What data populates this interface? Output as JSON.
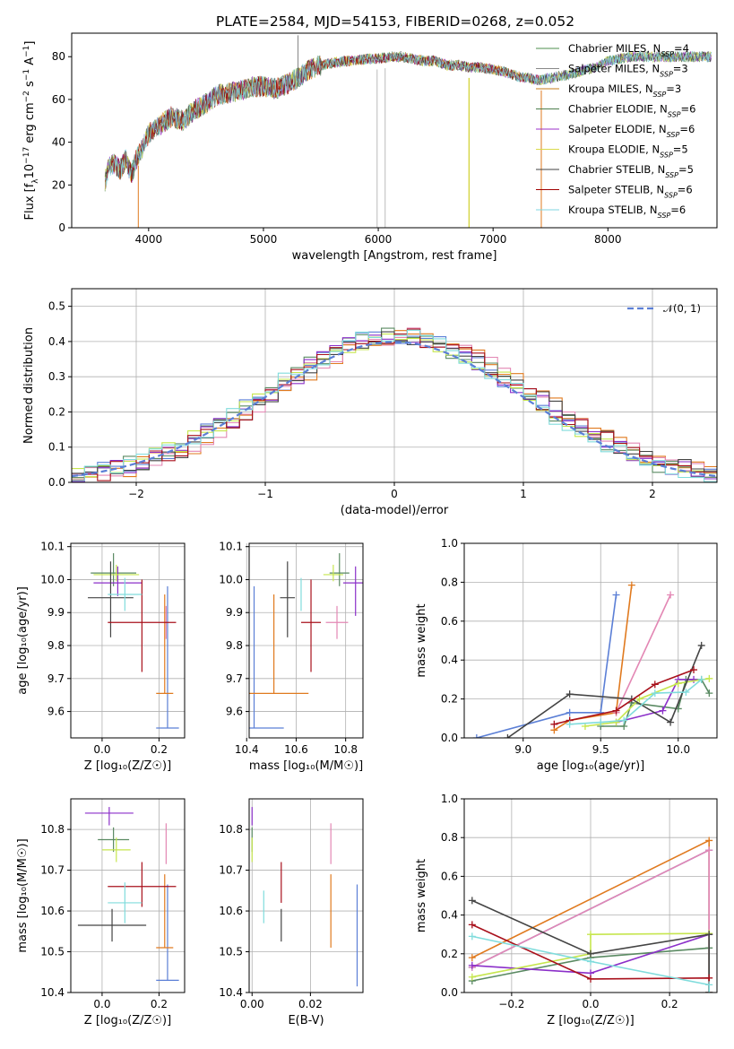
{
  "page_title": "PLATE=2584, MJD=54153, FIBERID=0268, z=0.052",
  "colors": {
    "Chabrier MILES": "#4e8f4e",
    "Salpeter MILES": "#7f7f7f",
    "Kroupa MILES": "#c77c1a",
    "Chabrier ELODIE": "#4e7f4e",
    "Salpeter ELODIE": "#9b30c8",
    "Kroupa ELODIE": "#d9d94a",
    "Chabrier STELIB": "#404040",
    "Salpeter STELIB": "#a00000",
    "Kroupa STELIB": "#7fd6e0",
    "blue": "#5b7fd6",
    "orange": "#e07a1f",
    "pink": "#e387b4",
    "green": "#5a8a62",
    "purple": "#8b2fc9",
    "lime": "#c6e64e",
    "dark": "#444444",
    "red": "#a8101b",
    "cyan": "#80dcdc"
  },
  "chart_data": [
    {
      "type": "line",
      "title": "PLATE=2584, MJD=54153, FIBERID=0268, z=0.052",
      "xlabel": "wavelength [Angstrom, rest frame]",
      "ylabel": "Flux [f$_\\lambda$10$^{-17}$ erg cm$^{-2}$ s$^{-1}$ A$^{-1}$]",
      "ylabel_display": [
        "Flux [f",
        "λ",
        "10",
        "−17",
        " erg cm",
        "−2",
        " s",
        "−1",
        " A",
        "−1",
        "]"
      ],
      "xlim": [
        3330,
        8950
      ],
      "ylim": [
        0,
        91
      ],
      "xticks": [
        4000,
        5000,
        6000,
        7000,
        8000
      ],
      "yticks": [
        0,
        20,
        40,
        60,
        80
      ],
      "legend": "top-right",
      "legend_entries": [
        {
          "name": "Chabrier MILES",
          "nssp": "4",
          "color": "#4e8f4e"
        },
        {
          "name": "Salpeter MILES",
          "nssp": "3",
          "color": "#888888"
        },
        {
          "name": "Kroupa MILES",
          "nssp": "3",
          "color": "#c77c1a"
        },
        {
          "name": "Chabrier ELODIE",
          "nssp": "6",
          "color": "#4e7f4e"
        },
        {
          "name": "Salpeter ELODIE",
          "nssp": "6",
          "color": "#9b30c8"
        },
        {
          "name": "Kroupa ELODIE",
          "nssp": "5",
          "color": "#d9d94a"
        },
        {
          "name": "Chabrier STELIB",
          "nssp": "5",
          "color": "#404040"
        },
        {
          "name": "Salpeter STELIB",
          "nssp": "6",
          "color": "#a00000"
        },
        {
          "name": "Kroupa STELIB",
          "nssp": "6",
          "color": "#7fd6e0"
        }
      ],
      "legend_label_prefix": ", N",
      "legend_label_sub": "SSP",
      "legend_label_eq": "=",
      "spectrum_envelope": {
        "x": [
          3620,
          3650,
          3700,
          3750,
          3800,
          3850,
          3900,
          3950,
          4000,
          4100,
          4200,
          4300,
          4400,
          4500,
          4600,
          4700,
          4800,
          4900,
          5000,
          5100,
          5200,
          5300,
          5400,
          5500,
          5600,
          5700,
          5800,
          5900,
          6000,
          6100,
          6200,
          6300,
          6400,
          6500,
          6600,
          6700,
          6800,
          6900,
          7000,
          7100,
          7200,
          7300,
          7400,
          7500,
          7600,
          7700,
          7800,
          7900,
          8000,
          8100,
          8200,
          8300,
          8400,
          8500,
          8600,
          8700,
          8800,
          8900
        ],
        "y": [
          22,
          28,
          30,
          27,
          32,
          25,
          33,
          38,
          44,
          48,
          52,
          50,
          55,
          58,
          62,
          63,
          64,
          66,
          66,
          65,
          67,
          70,
          74,
          76,
          77,
          78,
          78,
          79,
          79,
          80,
          80,
          79,
          78,
          78,
          76,
          76,
          75,
          75,
          74,
          73,
          71,
          70,
          69,
          70,
          71,
          72,
          74,
          75,
          78,
          79,
          80,
          80,
          80,
          80,
          80,
          80,
          80,
          80
        ]
      }
    },
    {
      "type": "line",
      "xlabel": "(data-model)/error",
      "ylabel": "Normed distribution",
      "xlim": [
        -2.5,
        2.5
      ],
      "ylim": [
        0,
        0.55
      ],
      "xticks": [
        -2,
        -1,
        0,
        1,
        2
      ],
      "xtick_labels": [
        "−2",
        "−1",
        "0",
        "1",
        "2"
      ],
      "yticks": [
        0.0,
        0.1,
        0.2,
        0.3,
        0.4,
        0.5
      ],
      "ytick_labels": [
        "0.0",
        "0.1",
        "0.2",
        "0.3",
        "0.4",
        "0.5"
      ],
      "legend": "top-right",
      "legend_entries": [
        {
          "name": "𝒩(0, 1)",
          "color": "#5b7fd6",
          "style": "dashed"
        }
      ],
      "bin_width": 0.1
    },
    {
      "type": "scatter",
      "xlabel": "Z [log₁₀(Z/Z☉)]",
      "ylabel": "age  [log₁₀(age/yr)]",
      "xlim": [
        -0.11,
        0.29
      ],
      "ylim": [
        9.52,
        10.11
      ],
      "xticks": [
        0.0,
        0.2
      ],
      "xtick_labels": [
        "0.0",
        "0.2"
      ],
      "yticks": [
        9.6,
        9.7,
        9.8,
        9.9,
        10.0,
        10.1
      ],
      "ytick_labels": [
        "9.6",
        "9.7",
        "9.8",
        "9.9",
        "10.0",
        "10.1"
      ],
      "series": [
        {
          "color": "#5b7fd6",
          "x": 0.23,
          "xerr": 0.04,
          "y": 9.55,
          "yerr": [
            0.0,
            0.43
          ]
        },
        {
          "color": "#e07a1f",
          "x": 0.22,
          "xerr": 0.03,
          "y": 9.655,
          "yerr": [
            0.0,
            0.3
          ]
        },
        {
          "color": "#e387b4",
          "x": 0.225,
          "xerr": 0.0,
          "y": 9.87,
          "yerr": [
            0.05,
            0.05
          ]
        },
        {
          "color": "#5a8a62",
          "x": 0.04,
          "xerr": 0.08,
          "y": 10.02,
          "yerr": [
            0.04,
            0.06
          ]
        },
        {
          "color": "#8b2fc9",
          "x": 0.055,
          "xerr": 0.085,
          "y": 9.99,
          "yerr": [
            0.04,
            0.05
          ]
        },
        {
          "color": "#c6e64e",
          "x": 0.05,
          "xerr": 0.08,
          "y": 10.015,
          "yerr": [
            0.02,
            0.03
          ]
        },
        {
          "color": "#444444",
          "x": 0.03,
          "xerr": 0.08,
          "y": 9.945,
          "yerr": [
            0.12,
            0.11
          ]
        },
        {
          "color": "#a8101b",
          "x": 0.14,
          "xerr": 0.12,
          "y": 9.87,
          "yerr": [
            0.15,
            0.13
          ]
        },
        {
          "color": "#80dcdc",
          "x": 0.08,
          "xerr": 0.06,
          "y": 9.955,
          "yerr": [
            0.05,
            0.05
          ]
        }
      ]
    },
    {
      "type": "scatter",
      "xlabel": "mass [log₁₀(M/M☉)]",
      "ylabel": "",
      "xlim": [
        10.41,
        10.87
      ],
      "ylim": [
        9.52,
        10.11
      ],
      "xticks": [
        10.4,
        10.6,
        10.8
      ],
      "xtick_labels": [
        "10.4",
        "10.6",
        "10.8"
      ],
      "yticks": [
        9.6,
        9.7,
        9.8,
        9.9,
        10.0,
        10.1
      ],
      "ytick_labels": [
        "9.6",
        "9.7",
        "9.8",
        "9.9",
        "10.0",
        "10.1"
      ],
      "series": [
        {
          "color": "#5b7fd6",
          "x": 10.43,
          "xerr": 0.12,
          "y": 9.55,
          "yerr": [
            0.0,
            0.43
          ]
        },
        {
          "color": "#e07a1f",
          "x": 10.51,
          "xerr": 0.14,
          "y": 9.655,
          "yerr": [
            0.0,
            0.3
          ]
        },
        {
          "color": "#e387b4",
          "x": 10.765,
          "xerr": 0.045,
          "y": 9.87,
          "yerr": [
            0.05,
            0.05
          ]
        },
        {
          "color": "#5a8a62",
          "x": 10.775,
          "xerr": 0.04,
          "y": 10.02,
          "yerr": [
            0.04,
            0.06
          ]
        },
        {
          "color": "#8b2fc9",
          "x": 10.84,
          "xerr": 0.05,
          "y": 9.99,
          "yerr": [
            0.1,
            0.05
          ]
        },
        {
          "color": "#c6e64e",
          "x": 10.75,
          "xerr": 0.04,
          "y": 10.015,
          "yerr": [
            0.02,
            0.03
          ]
        },
        {
          "color": "#444444",
          "x": 10.565,
          "xerr": 0.03,
          "y": 9.945,
          "yerr": [
            0.12,
            0.11
          ]
        },
        {
          "color": "#a8101b",
          "x": 10.66,
          "xerr": 0.04,
          "y": 9.87,
          "yerr": [
            0.15,
            0.13
          ]
        },
        {
          "color": "#80dcdc",
          "x": 10.62,
          "xerr": 0.0,
          "y": 9.955,
          "yerr": [
            0.05,
            0.05
          ]
        }
      ]
    },
    {
      "type": "line",
      "xlabel": "age  [log₁₀(age/yr)]",
      "ylabel": "mass weight",
      "xlim": [
        8.62,
        10.25
      ],
      "ylim": [
        0,
        1.0
      ],
      "xticks": [
        9.0,
        9.5,
        10.0
      ],
      "xtick_labels": [
        "9.0",
        "9.5",
        "10.0"
      ],
      "yticks": [
        0.0,
        0.2,
        0.4,
        0.6,
        0.8,
        1.0
      ],
      "ytick_labels": [
        "0.0",
        "0.2",
        "0.4",
        "0.6",
        "0.8",
        "1.0"
      ],
      "series": [
        {
          "color": "#5b7fd6",
          "x": [
            8.7,
            9.3,
            9.5,
            9.6
          ],
          "y": [
            0.0,
            0.13,
            0.13,
            0.735
          ]
        },
        {
          "color": "#e07a1f",
          "x": [
            9.2,
            9.3,
            9.6,
            9.7
          ],
          "y": [
            0.04,
            0.09,
            0.13,
            0.785
          ]
        },
        {
          "color": "#e387b4",
          "x": [
            9.6,
            9.95
          ],
          "y": [
            0.13,
            0.735
          ]
        },
        {
          "color": "#5a8a62",
          "x": [
            9.5,
            9.65,
            9.7,
            10.0,
            10.05,
            10.15,
            10.2
          ],
          "y": [
            0.06,
            0.06,
            0.18,
            0.15,
            0.3,
            0.3,
            0.23
          ]
        },
        {
          "color": "#8b2fc9",
          "x": [
            9.6,
            9.9,
            10.0,
            10.1
          ],
          "y": [
            0.08,
            0.14,
            0.3,
            0.3
          ]
        },
        {
          "color": "#c6e64e",
          "x": [
            9.4,
            9.6,
            9.75,
            10.0,
            10.2
          ],
          "y": [
            0.06,
            0.08,
            0.2,
            0.28,
            0.305
          ]
        },
        {
          "color": "#444444",
          "x": [
            8.9,
            9.3,
            9.7,
            9.95,
            10.15
          ],
          "y": [
            0.0,
            0.225,
            0.2,
            0.08,
            0.475
          ]
        },
        {
          "color": "#a8101b",
          "x": [
            9.2,
            9.3,
            9.6,
            9.85,
            10.1
          ],
          "y": [
            0.07,
            0.09,
            0.14,
            0.275,
            0.35
          ]
        },
        {
          "color": "#80dcdc",
          "x": [
            9.3,
            9.5,
            9.65,
            9.85,
            10.05,
            10.15
          ],
          "y": [
            0.07,
            0.08,
            0.09,
            0.23,
            0.235,
            0.3
          ]
        }
      ]
    },
    {
      "type": "scatter",
      "xlabel": "Z [log₁₀(Z/Z☉)]",
      "ylabel": "mass [log₁₀(M/M☉)]",
      "xlim": [
        -0.11,
        0.29
      ],
      "ylim": [
        10.4,
        10.875
      ],
      "xticks": [
        0.0,
        0.2
      ],
      "xtick_labels": [
        "0.0",
        "0.2"
      ],
      "yticks": [
        10.4,
        10.5,
        10.6,
        10.7,
        10.8
      ],
      "ytick_labels": [
        "10.4",
        "10.5",
        "10.6",
        "10.7",
        "10.8"
      ],
      "series": [
        {
          "color": "#5b7fd6",
          "x": 0.23,
          "xerr": 0.04,
          "y": 10.43,
          "yerr": [
            0.0,
            0.235
          ]
        },
        {
          "color": "#e07a1f",
          "x": 0.22,
          "xerr": 0.03,
          "y": 10.51,
          "yerr": [
            0.0,
            0.18
          ]
        },
        {
          "color": "#e387b4",
          "x": 0.225,
          "xerr": 0.0,
          "y": 10.765,
          "yerr": [
            0.05,
            0.05
          ]
        },
        {
          "color": "#5a8a62",
          "x": 0.04,
          "xerr": 0.055,
          "y": 10.775,
          "yerr": [
            0.03,
            0.03
          ]
        },
        {
          "color": "#8b2fc9",
          "x": 0.025,
          "xerr": 0.085,
          "y": 10.84,
          "yerr": [
            0.03,
            0.015
          ]
        },
        {
          "color": "#c6e64e",
          "x": 0.05,
          "xerr": 0.05,
          "y": 10.75,
          "yerr": [
            0.03,
            0.03
          ]
        },
        {
          "color": "#444444",
          "x": 0.035,
          "xerr": 0.12,
          "y": 10.565,
          "yerr": [
            0.04,
            0.04
          ]
        },
        {
          "color": "#a8101b",
          "x": 0.14,
          "xerr": 0.12,
          "y": 10.66,
          "yerr": [
            0.05,
            0.06
          ]
        },
        {
          "color": "#80dcdc",
          "x": 0.08,
          "xerr": 0.06,
          "y": 10.62,
          "yerr": [
            0.05,
            0.05
          ]
        }
      ]
    },
    {
      "type": "scatter",
      "xlabel": "E(B-V)",
      "ylabel": "",
      "xlim": [
        -0.001,
        0.038
      ],
      "ylim": [
        10.4,
        10.875
      ],
      "xticks": [
        0.0,
        0.02
      ],
      "xtick_labels": [
        "0.00",
        "0.02"
      ],
      "yticks": [
        10.4,
        10.5,
        10.6,
        10.7,
        10.8
      ],
      "ytick_labels": [
        "10.4",
        "10.5",
        "10.6",
        "10.7",
        "10.8"
      ],
      "series": [
        {
          "color": "#5b7fd6",
          "x": 0.036,
          "y": 10.43,
          "yerr": [
            0.015,
            0.235
          ]
        },
        {
          "color": "#e07a1f",
          "x": 0.027,
          "y": 10.51,
          "yerr": [
            0.0,
            0.18
          ]
        },
        {
          "color": "#e387b4",
          "x": 0.027,
          "y": 10.765,
          "yerr": [
            0.05,
            0.05
          ]
        },
        {
          "color": "#5a8a62",
          "x": 0.0,
          "y": 10.775,
          "yerr": [
            0.03,
            0.03
          ]
        },
        {
          "color": "#8b2fc9",
          "x": 0.0,
          "y": 10.84,
          "yerr": [
            0.03,
            0.015
          ]
        },
        {
          "color": "#c6e64e",
          "x": 0.0,
          "y": 10.75,
          "yerr": [
            0.03,
            0.03
          ]
        },
        {
          "color": "#444444",
          "x": 0.01,
          "y": 10.565,
          "yerr": [
            0.04,
            0.04
          ]
        },
        {
          "color": "#a8101b",
          "x": 0.01,
          "y": 10.66,
          "yerr": [
            0.04,
            0.06
          ]
        },
        {
          "color": "#80dcdc",
          "x": 0.004,
          "y": 10.62,
          "yerr": [
            0.05,
            0.03
          ]
        }
      ]
    },
    {
      "type": "line",
      "xlabel": "Z [log₁₀(Z/Z☉)]",
      "ylabel": "mass weight",
      "xlim": [
        -0.32,
        0.32
      ],
      "ylim": [
        0,
        1.0
      ],
      "xticks": [
        -0.2,
        0.0,
        0.2
      ],
      "xtick_labels": [
        "−0.2",
        "0.0",
        "0.2"
      ],
      "yticks": [
        0.0,
        0.2,
        0.4,
        0.6,
        0.8,
        1.0
      ],
      "ytick_labels": [
        "0.0",
        "0.2",
        "0.4",
        "0.6",
        "0.8",
        "1.0"
      ],
      "series": [
        {
          "color": "#5b7fd6",
          "x": [
            -0.3,
            0.3,
            0.3
          ],
          "y": [
            0.13,
            0.735,
            0.0
          ]
        },
        {
          "color": "#e07a1f",
          "x": [
            -0.3,
            0.3,
            0.3
          ],
          "y": [
            0.18,
            0.785,
            0.0
          ]
        },
        {
          "color": "#e387b4",
          "x": [
            -0.3,
            0.3,
            0.3
          ],
          "y": [
            0.13,
            0.735,
            0.0
          ]
        },
        {
          "color": "#5a8a62",
          "x": [
            -0.3,
            0.0,
            0.3,
            0.3
          ],
          "y": [
            0.06,
            0.18,
            0.23,
            0.0
          ]
        },
        {
          "color": "#8b2fc9",
          "x": [
            -0.3,
            0.0,
            0.3,
            0.3
          ],
          "y": [
            0.14,
            0.1,
            0.3,
            0.0
          ]
        },
        {
          "color": "#c6e64e",
          "x": [
            -0.3,
            0.0,
            0.0,
            0.3,
            0.3
          ],
          "y": [
            0.08,
            0.2,
            0.3,
            0.305,
            0.0
          ]
        },
        {
          "color": "#444444",
          "x": [
            -0.3,
            0.0,
            0.3,
            0.3
          ],
          "y": [
            0.475,
            0.2,
            0.3,
            0.0
          ]
        },
        {
          "color": "#a8101b",
          "x": [
            -0.3,
            0.0,
            0.3,
            0.3
          ],
          "y": [
            0.35,
            0.07,
            0.075,
            0.0
          ]
        },
        {
          "color": "#80dcdc",
          "x": [
            -0.3,
            0.0,
            0.3,
            0.3
          ],
          "y": [
            0.29,
            0.16,
            0.04,
            0.0
          ]
        }
      ]
    }
  ]
}
